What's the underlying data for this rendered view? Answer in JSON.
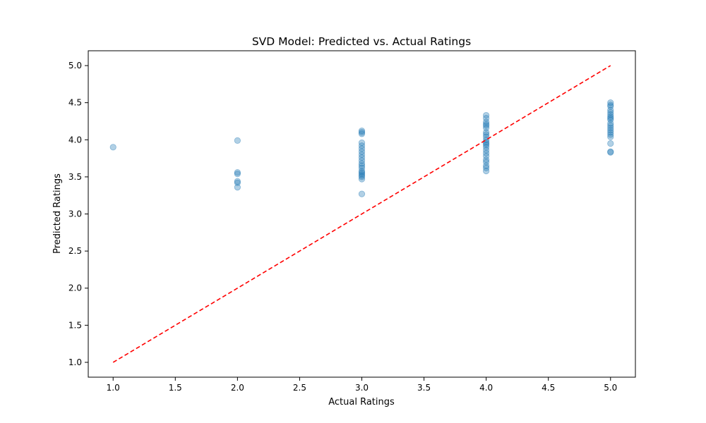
{
  "chart_data": {
    "type": "scatter",
    "title": "SVD Model: Predicted vs. Actual Ratings",
    "xlabel": "Actual Ratings",
    "ylabel": "Predicted Ratings",
    "xlim": [
      0.8,
      5.2
    ],
    "ylim": [
      0.8,
      5.2
    ],
    "xticks": [
      "1.0",
      "1.5",
      "2.0",
      "2.5",
      "3.0",
      "3.5",
      "4.0",
      "4.5",
      "5.0"
    ],
    "yticks": [
      "1.0",
      "1.5",
      "2.0",
      "2.5",
      "3.0",
      "3.5",
      "4.0",
      "4.5",
      "5.0"
    ],
    "grid": false,
    "point_color": "#1f77b4",
    "point_alpha": 0.35,
    "reference_line": {
      "from": [
        1,
        1
      ],
      "to": [
        5,
        5
      ],
      "color": "#ff0000",
      "style": "dashed"
    },
    "points": [
      [
        1,
        3.9
      ],
      [
        2,
        3.99
      ],
      [
        2,
        3.56
      ],
      [
        2,
        3.54
      ],
      [
        2,
        3.44
      ],
      [
        2,
        3.42
      ],
      [
        2,
        3.36
      ],
      [
        3,
        4.12
      ],
      [
        3,
        4.1
      ],
      [
        3,
        4.08
      ],
      [
        3,
        3.96
      ],
      [
        3,
        3.92
      ],
      [
        3,
        3.88
      ],
      [
        3,
        3.84
      ],
      [
        3,
        3.8
      ],
      [
        3,
        3.76
      ],
      [
        3,
        3.72
      ],
      [
        3,
        3.68
      ],
      [
        3,
        3.65
      ],
      [
        3,
        3.62
      ],
      [
        3,
        3.58
      ],
      [
        3,
        3.56
      ],
      [
        3,
        3.54
      ],
      [
        3,
        3.52
      ],
      [
        3,
        3.5
      ],
      [
        3,
        3.47
      ],
      [
        3,
        3.27
      ],
      [
        4,
        4.33
      ],
      [
        4,
        4.29
      ],
      [
        4,
        4.24
      ],
      [
        4,
        4.21
      ],
      [
        4,
        4.19
      ],
      [
        4,
        4.16
      ],
      [
        4,
        4.1
      ],
      [
        4,
        4.07
      ],
      [
        4,
        4.04
      ],
      [
        4,
        4.0
      ],
      [
        4,
        3.97
      ],
      [
        4,
        3.95
      ],
      [
        4,
        3.93
      ],
      [
        4,
        3.9
      ],
      [
        4,
        3.86
      ],
      [
        4,
        3.82
      ],
      [
        4,
        3.78
      ],
      [
        4,
        3.73
      ],
      [
        4,
        3.7
      ],
      [
        4,
        3.65
      ],
      [
        4,
        3.62
      ],
      [
        4,
        3.58
      ],
      [
        5,
        4.5
      ],
      [
        5,
        4.47
      ],
      [
        5,
        4.45
      ],
      [
        5,
        4.4
      ],
      [
        5,
        4.37
      ],
      [
        5,
        4.34
      ],
      [
        5,
        4.31
      ],
      [
        5,
        4.29
      ],
      [
        5,
        4.27
      ],
      [
        5,
        4.22
      ],
      [
        5,
        4.19
      ],
      [
        5,
        4.16
      ],
      [
        5,
        4.13
      ],
      [
        5,
        4.1
      ],
      [
        5,
        4.07
      ],
      [
        5,
        4.04
      ],
      [
        5,
        3.95
      ],
      [
        5,
        3.84
      ],
      [
        5,
        3.83
      ]
    ]
  }
}
